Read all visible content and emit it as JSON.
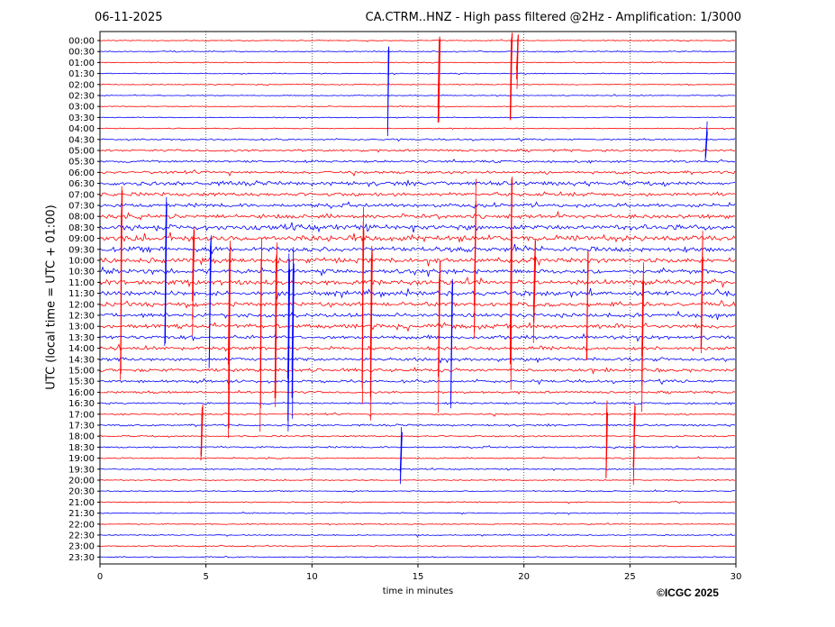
{
  "header": {
    "date": "06-11-2025",
    "title": "CA.CTRM..HNZ - High pass filtered @2Hz - Amplification: 1/3000"
  },
  "footer": {
    "copyright": "©ICGC 2025"
  },
  "colors": {
    "red": "#ff0000",
    "blue": "#0000ff",
    "axis": "#000000"
  },
  "chart_data": {
    "type": "line",
    "title": "CA.CTRM..HNZ - High pass filtered @2Hz - Amplification: 1/3000",
    "xlabel": "time in minutes",
    "ylabel": "UTC (local time = UTC + 01:00)",
    "xlim": [
      0,
      30
    ],
    "x_ticks": [
      0,
      5,
      10,
      15,
      20,
      25,
      30
    ],
    "x_grid": "dotted vertical lines at 5, 10, 15, 20, 25",
    "trace_colors_alternate": [
      "red",
      "blue"
    ],
    "rows": [
      {
        "label": "00:00",
        "level": 0.5
      },
      {
        "label": "00:30",
        "level": 0.6
      },
      {
        "label": "01:00",
        "level": 0.5
      },
      {
        "label": "01:30",
        "level": 0.5
      },
      {
        "label": "02:00",
        "level": 0.5
      },
      {
        "label": "02:30",
        "level": 0.5
      },
      {
        "label": "03:00",
        "level": 0.5
      },
      {
        "label": "03:30",
        "level": 0.5
      },
      {
        "label": "04:00",
        "level": 0.5
      },
      {
        "label": "04:30",
        "level": 0.8
      },
      {
        "label": "05:00",
        "level": 1.2
      },
      {
        "label": "05:30",
        "level": 1.2
      },
      {
        "label": "06:00",
        "level": 1.5
      },
      {
        "label": "06:30",
        "level": 2.2
      },
      {
        "label": "07:00",
        "level": 2.0
      },
      {
        "label": "07:30",
        "level": 2.0
      },
      {
        "label": "08:00",
        "level": 2.2
      },
      {
        "label": "08:30",
        "level": 2.8
      },
      {
        "label": "09:00",
        "level": 3.2
      },
      {
        "label": "09:30",
        "level": 2.6
      },
      {
        "label": "10:00",
        "level": 2.6
      },
      {
        "label": "10:30",
        "level": 2.4
      },
      {
        "label": "11:00",
        "level": 2.6
      },
      {
        "label": "11:30",
        "level": 2.6
      },
      {
        "label": "12:00",
        "level": 2.2
      },
      {
        "label": "12:30",
        "level": 2.2
      },
      {
        "label": "13:00",
        "level": 2.2
      },
      {
        "label": "13:30",
        "level": 2.0
      },
      {
        "label": "14:00",
        "level": 1.8
      },
      {
        "label": "14:30",
        "level": 1.8
      },
      {
        "label": "15:00",
        "level": 1.8
      },
      {
        "label": "15:30",
        "level": 1.4
      },
      {
        "label": "16:00",
        "level": 1.2
      },
      {
        "label": "16:30",
        "level": 1.0
      },
      {
        "label": "17:00",
        "level": 0.9
      },
      {
        "label": "17:30",
        "level": 1.0
      },
      {
        "label": "18:00",
        "level": 0.8
      },
      {
        "label": "18:30",
        "level": 0.9
      },
      {
        "label": "19:00",
        "level": 0.7
      },
      {
        "label": "19:30",
        "level": 0.7
      },
      {
        "label": "20:00",
        "level": 0.6
      },
      {
        "label": "20:30",
        "level": 0.6
      },
      {
        "label": "21:00",
        "level": 0.6
      },
      {
        "label": "21:30",
        "level": 0.6
      },
      {
        "label": "22:00",
        "level": 0.6
      },
      {
        "label": "22:30",
        "level": 0.6
      },
      {
        "label": "23:00",
        "level": 0.6
      },
      {
        "label": "23:30",
        "level": 0.6
      }
    ],
    "spikes": [
      {
        "row": "00:30",
        "minute": 13.6,
        "up": 0.6,
        "down": 8.5
      },
      {
        "row": "00:00",
        "minute": 16.0,
        "up": 0.8,
        "down": 8.5
      },
      {
        "row": "00:00",
        "minute": 19.4,
        "up": 0.8,
        "down": 8.5
      },
      {
        "row": "00:00",
        "minute": 19.7,
        "up": 0.8,
        "down": 4.5
      },
      {
        "row": "04:30",
        "minute": 28.6,
        "up": 2.0,
        "down": 2.0
      },
      {
        "row": "08:00",
        "minute": 1.0,
        "up": 3,
        "down": 15
      },
      {
        "row": "08:30",
        "minute": 3.1,
        "up": 3,
        "down": 12
      },
      {
        "row": "09:00",
        "minute": 4.4,
        "up": 2,
        "down": 9
      },
      {
        "row": "09:30",
        "minute": 5.2,
        "up": 2,
        "down": 18
      },
      {
        "row": "10:00",
        "minute": 6.1,
        "up": 2,
        "down": 17
      },
      {
        "row": "10:00",
        "minute": 7.6,
        "up": 2,
        "down": 17
      },
      {
        "row": "10:00",
        "minute": 8.3,
        "up": 2,
        "down": 16
      },
      {
        "row": "10:30",
        "minute": 8.9,
        "up": 3,
        "down": 16
      },
      {
        "row": "10:30",
        "minute": 9.1,
        "up": 3,
        "down": 15
      },
      {
        "row": "09:00",
        "minute": 12.4,
        "up": 3,
        "down": 16
      },
      {
        "row": "10:00",
        "minute": 12.8,
        "up": 2,
        "down": 16
      },
      {
        "row": "11:00",
        "minute": 16.0,
        "up": 2,
        "down": 13
      },
      {
        "row": "11:30",
        "minute": 16.6,
        "up": 2,
        "down": 12
      },
      {
        "row": "09:00",
        "minute": 17.7,
        "up": 6,
        "down": 10
      },
      {
        "row": "09:00",
        "minute": 19.4,
        "up": 6,
        "down": 14
      },
      {
        "row": "10:00",
        "minute": 20.5,
        "up": 2,
        "down": 8
      },
      {
        "row": "11:00",
        "minute": 23.0,
        "up": 3,
        "down": 8
      },
      {
        "row": "11:00",
        "minute": 25.6,
        "up": 3,
        "down": 12
      },
      {
        "row": "10:00",
        "minute": 28.4,
        "up": 3,
        "down": 10
      },
      {
        "row": "17:00",
        "minute": 4.8,
        "up": 1,
        "down": 5
      },
      {
        "row": "18:30",
        "minute": 14.2,
        "up": 2,
        "down": 4
      },
      {
        "row": "17:00",
        "minute": 23.9,
        "up": 2,
        "down": 6
      },
      {
        "row": "17:00",
        "minute": 25.2,
        "up": 1,
        "down": 7
      }
    ]
  }
}
